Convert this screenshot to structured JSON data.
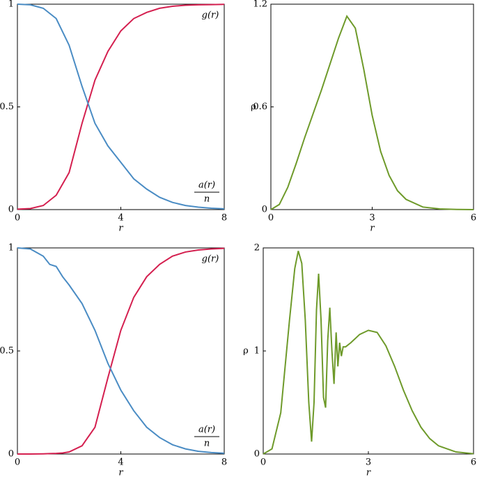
{
  "chart_data": [
    {
      "type": "line",
      "xlabel": "r",
      "x": [
        0,
        0.5,
        1,
        1.5,
        2,
        2.5,
        3,
        3.5,
        4,
        4.5,
        5,
        5.5,
        6,
        6.5,
        7,
        7.5,
        8
      ],
      "series": [
        {
          "label": "g(r)",
          "color": "#d41f4f",
          "values": [
            0.002,
            0.005,
            0.02,
            0.07,
            0.18,
            0.42,
            0.63,
            0.77,
            0.87,
            0.93,
            0.96,
            0.98,
            0.99,
            0.995,
            0.997,
            0.998,
            0.999
          ]
        },
        {
          "label": "a(r)",
          "label_denominator": "n",
          "color": "#4a8cc4",
          "values": [
            1.0,
            0.997,
            0.98,
            0.93,
            0.8,
            0.6,
            0.42,
            0.31,
            0.23,
            0.15,
            0.1,
            0.06,
            0.035,
            0.02,
            0.012,
            0.007,
            0.004
          ]
        }
      ],
      "xlim": [
        0,
        8
      ],
      "ylim": [
        0,
        1
      ],
      "xticks": [
        0,
        4,
        8
      ],
      "yticks": [
        0,
        0.5,
        1
      ]
    },
    {
      "type": "line",
      "xlabel": "r",
      "ylabel": "ρ",
      "x": [
        0,
        0.25,
        0.5,
        0.75,
        1,
        1.25,
        1.5,
        1.75,
        2,
        2.25,
        2.5,
        2.75,
        3,
        3.25,
        3.5,
        3.75,
        4,
        4.5,
        5,
        5.5,
        6
      ],
      "series": [
        {
          "color": "#6e9a2a",
          "values": [
            0,
            0.03,
            0.13,
            0.27,
            0.42,
            0.56,
            0.7,
            0.85,
            1.0,
            1.13,
            1.06,
            0.82,
            0.55,
            0.34,
            0.2,
            0.11,
            0.06,
            0.015,
            0.004,
            0.001,
            0
          ]
        }
      ],
      "xlim": [
        0,
        6
      ],
      "ylim": [
        0,
        1.2
      ],
      "xticks": [
        0,
        3,
        6
      ],
      "yticks": [
        0,
        0.6,
        1.2
      ]
    },
    {
      "type": "line",
      "xlabel": "r",
      "x": [
        0,
        0.5,
        1,
        1.25,
        1.5,
        1.75,
        2,
        2.5,
        3,
        3.5,
        4,
        4.5,
        5,
        5.5,
        6,
        6.5,
        7,
        7.5,
        8
      ],
      "series": [
        {
          "label": "g(r)",
          "color": "#d41f4f",
          "values": [
            0,
            0,
            0.001,
            0.002,
            0.003,
            0.005,
            0.01,
            0.04,
            0.13,
            0.37,
            0.6,
            0.76,
            0.86,
            0.92,
            0.96,
            0.98,
            0.99,
            0.995,
            0.998
          ]
        },
        {
          "label": "a(r)",
          "label_denominator": "n",
          "color": "#4a8cc4",
          "values": [
            1.0,
            0.995,
            0.96,
            0.92,
            0.91,
            0.86,
            0.82,
            0.73,
            0.6,
            0.44,
            0.31,
            0.21,
            0.13,
            0.08,
            0.045,
            0.025,
            0.013,
            0.007,
            0.004
          ]
        }
      ],
      "xlim": [
        0,
        8
      ],
      "ylim": [
        0,
        1
      ],
      "xticks": [
        0,
        4,
        8
      ],
      "yticks": [
        0,
        0.5,
        1
      ]
    },
    {
      "type": "line",
      "xlabel": "r",
      "ylabel": "ρ",
      "x": [
        0,
        0.25,
        0.5,
        0.75,
        0.9,
        1.0,
        1.1,
        1.2,
        1.3,
        1.38,
        1.45,
        1.52,
        1.58,
        1.65,
        1.72,
        1.78,
        1.84,
        1.9,
        1.96,
        2.02,
        2.08,
        2.13,
        2.18,
        2.23,
        2.28,
        2.35,
        2.5,
        2.75,
        3,
        3.25,
        3.5,
        3.75,
        4,
        4.25,
        4.5,
        4.75,
        5,
        5.5,
        6
      ],
      "series": [
        {
          "color": "#6e9a2a",
          "values": [
            0,
            0.05,
            0.4,
            1.3,
            1.8,
            1.97,
            1.85,
            1.3,
            0.5,
            0.12,
            0.5,
            1.4,
            1.75,
            1.3,
            0.55,
            0.45,
            1.1,
            1.42,
            1.0,
            0.68,
            1.18,
            0.85,
            1.08,
            0.95,
            1.04,
            1.04,
            1.08,
            1.16,
            1.2,
            1.18,
            1.05,
            0.85,
            0.62,
            0.42,
            0.26,
            0.15,
            0.08,
            0.02,
            0.003
          ]
        }
      ],
      "xlim": [
        0,
        6
      ],
      "ylim": [
        0,
        2
      ],
      "xticks": [
        0,
        3,
        6
      ],
      "yticks": [
        0,
        1,
        2
      ]
    }
  ]
}
